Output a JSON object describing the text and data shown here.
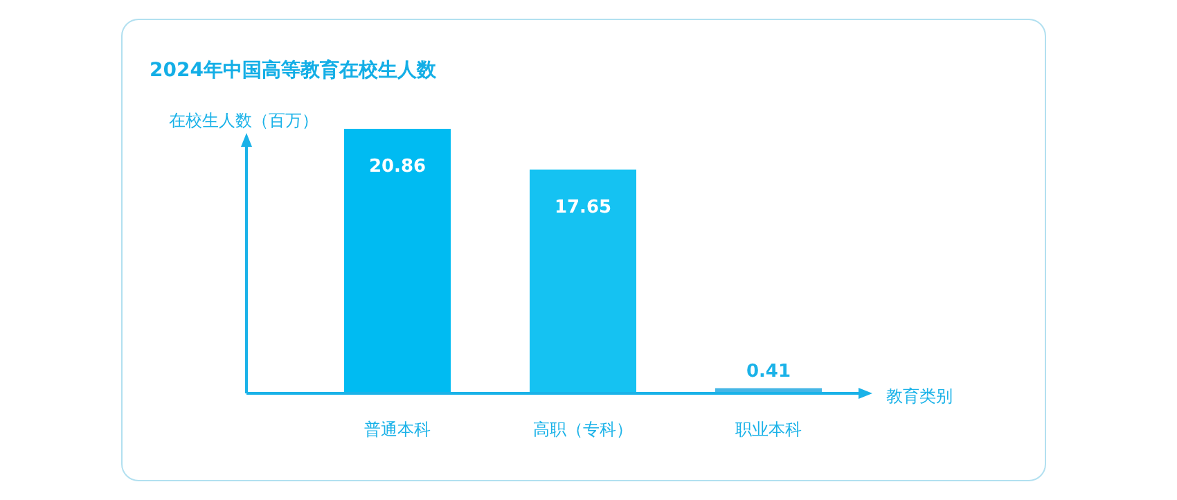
{
  "chart_data": {
    "type": "bar",
    "title": "2024年中国高等教育在校生人数",
    "ylabel": "在校生人数（百万）",
    "xlabel": "教育类别",
    "categories": [
      "普通本科",
      "高职（专科）",
      "职业本科"
    ],
    "values": [
      20.86,
      17.65,
      0.41
    ],
    "colors": [
      "#00bbf2",
      "#15c2f2",
      "#45b6e6"
    ],
    "data_labels": true
  }
}
